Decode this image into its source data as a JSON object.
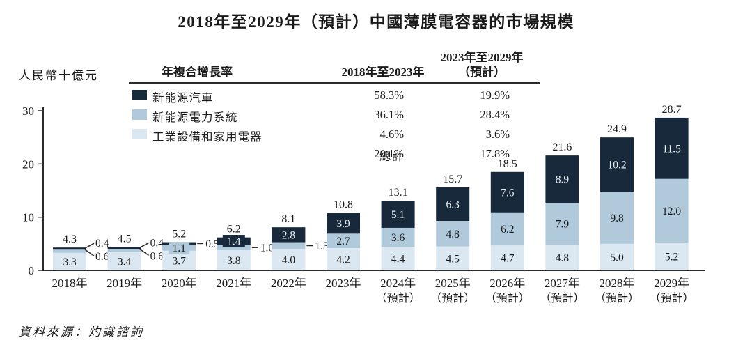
{
  "title": "2018年至2029年（預計）中國薄膜電容器的市場規模",
  "source": "資料來源：灼識諮詢",
  "colors": {
    "ev": "#17293a",
    "power": "#b0cadc",
    "industrial": "#dbe7f1",
    "text": "#1a1a1a",
    "label_on_dark": "#e9eff4",
    "axis": "#2b2b2b"
  },
  "cagr_table": {
    "header": {
      "col1": "年複合增長率",
      "col2": "2018年至2023年",
      "col3_line1": "2023年至2029年",
      "col3_line2": "（預計）"
    },
    "rows": [
      {
        "label": "新能源汽車",
        "swatch": "ev",
        "cagr_2018_2023": "58.3%",
        "cagr_2023_2029": "19.9%"
      },
      {
        "label": "新能源電力系統",
        "swatch": "power",
        "cagr_2018_2023": "36.1%",
        "cagr_2023_2029": "28.4%"
      },
      {
        "label": "工業設備和家用電器",
        "swatch": "industrial",
        "cagr_2018_2023": "4.6%",
        "cagr_2023_2029": "3.6%"
      },
      {
        "label": "總計",
        "swatch": null,
        "cagr_2018_2023": "20.1%",
        "cagr_2023_2029": "17.8%"
      }
    ]
  },
  "chart_data": {
    "type": "bar",
    "stacked": true,
    "title": "2018年至2029年（預計）中國薄膜電容器的市場規模",
    "ylabel": "人民幣十億元",
    "xlabel": "",
    "ylim": [
      0,
      30
    ],
    "y_ticks": [
      0,
      10,
      20,
      30
    ],
    "grid": false,
    "legend_position": "top-left-table",
    "categories": [
      {
        "label": "2018年",
        "sub": ""
      },
      {
        "label": "2019年",
        "sub": ""
      },
      {
        "label": "2020年",
        "sub": ""
      },
      {
        "label": "2021年",
        "sub": ""
      },
      {
        "label": "2022年",
        "sub": ""
      },
      {
        "label": "2023年",
        "sub": ""
      },
      {
        "label": "2024年",
        "sub": "（預計）"
      },
      {
        "label": "2025年",
        "sub": "（預計）"
      },
      {
        "label": "2026年",
        "sub": "（預計）"
      },
      {
        "label": "2027年",
        "sub": "（預計）"
      },
      {
        "label": "2028年",
        "sub": "（預計）"
      },
      {
        "label": "2029年",
        "sub": "（預計）"
      }
    ],
    "series": [
      {
        "name": "新能源汽車",
        "color_key": "ev",
        "values": [
          0.4,
          0.4,
          0.5,
          1.4,
          2.8,
          3.9,
          5.1,
          6.3,
          7.6,
          8.9,
          10.2,
          11.5
        ]
      },
      {
        "name": "新能源電力系統",
        "color_key": "power",
        "values": [
          0.6,
          0.6,
          1.1,
          1.0,
          1.3,
          2.7,
          3.6,
          4.8,
          6.2,
          7.9,
          9.8,
          12.0
        ]
      },
      {
        "name": "工業設備和家用電器",
        "color_key": "industrial",
        "values": [
          3.3,
          3.4,
          3.7,
          3.8,
          4.0,
          4.2,
          4.4,
          4.5,
          4.7,
          4.8,
          5.0,
          5.2
        ]
      }
    ],
    "totals": [
      4.3,
      4.5,
      5.2,
      6.2,
      8.1,
      10.8,
      13.1,
      15.7,
      18.5,
      21.6,
      24.9,
      28.7
    ],
    "stack_order_bottom_to_top": [
      "工業設備和家用電器",
      "新能源電力系統",
      "新能源汽車"
    ],
    "label_layout": {
      "callouts": [
        {
          "year_index": 0,
          "segments": [
            "ev",
            "power"
          ],
          "style": "elbow"
        },
        {
          "year_index": 1,
          "segments": [
            "ev",
            "power"
          ],
          "style": "elbow"
        },
        {
          "year_index": 2,
          "segments": [
            "ev"
          ],
          "style": "dash"
        },
        {
          "year_index": 3,
          "segments": [
            "power"
          ],
          "style": "dash"
        },
        {
          "year_index": 4,
          "segments": [
            "power"
          ],
          "style": "dash"
        }
      ],
      "badges": [
        {
          "year_index": 2,
          "segment": "power"
        },
        {
          "year_index": 3,
          "segment": "ev"
        },
        {
          "year_index": 4,
          "segment": "ev"
        }
      ]
    }
  }
}
